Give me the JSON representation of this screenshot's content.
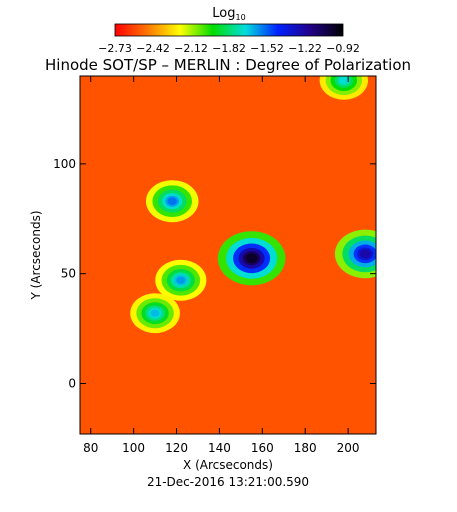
{
  "chart_data": {
    "type": "heatmap",
    "title": "Hinode SOT/SP – MERLIN : Degree of Polarization",
    "xlabel": "X (Arcseconds)",
    "ylabel": "Y (Arcseconds)",
    "timestamp": "21-Dec-2016 13:21:00.590",
    "xlim": [
      75,
      213
    ],
    "ylim": [
      -23,
      140
    ],
    "x_ticks": [
      80,
      100,
      120,
      140,
      160,
      180,
      200
    ],
    "y_ticks": [
      0,
      50,
      100
    ],
    "colorbar": {
      "label_base": "Log",
      "label_subscript": "10",
      "min": -2.73,
      "max": -0.92,
      "tick_labels": [
        "−2.73",
        "−2.42",
        "−2.12",
        "−1.82",
        "−1.52",
        "−1.22",
        "−0.92"
      ],
      "colors": [
        "#ff0000",
        "#ff7700",
        "#ffff00",
        "#00dd00",
        "#00dddd",
        "#0022ff",
        "#220088",
        "#000000"
      ]
    },
    "background_level": -2.55,
    "features": [
      {
        "region": "network-center",
        "x": 155,
        "y": 57,
        "peak": -1.0
      },
      {
        "region": "network-right",
        "x": 208,
        "y": 59,
        "peak": -1.25
      },
      {
        "region": "network-upper-left",
        "x": 118,
        "y": 83,
        "peak": -1.55
      },
      {
        "region": "network-left",
        "x": 122,
        "y": 47,
        "peak": -1.6
      },
      {
        "region": "network-lower-left",
        "x": 110,
        "y": 32,
        "peak": -1.65
      },
      {
        "region": "network-top-right",
        "x": 198,
        "y": 138,
        "peak": -1.7
      }
    ]
  }
}
